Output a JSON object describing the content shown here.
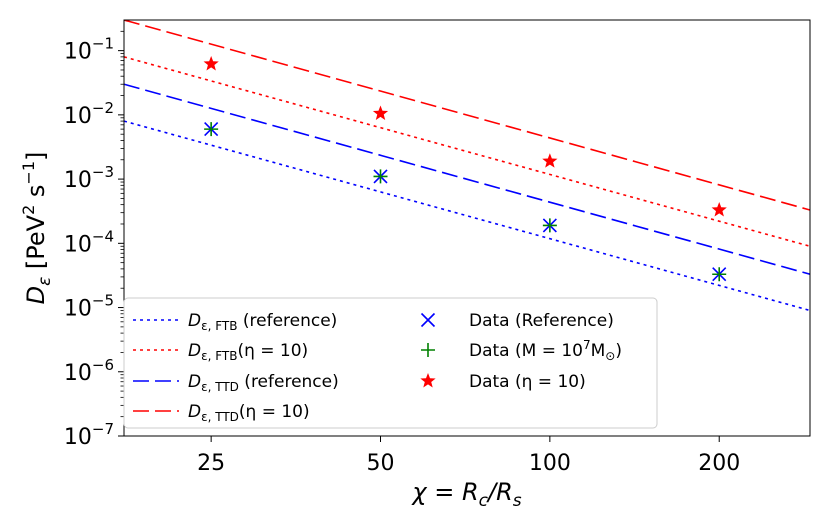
{
  "chart_data": {
    "type": "line",
    "xscale": "log",
    "yscale": "log",
    "xlim": [
      17.5,
      290
    ],
    "ylim": [
      1e-07,
      0.3
    ],
    "x_ticks": [
      25,
      50,
      100,
      200
    ],
    "x_tick_labels": [
      "25",
      "50",
      "100",
      "200"
    ],
    "y_ticks": [
      {
        "value": 1e-07,
        "base": "10",
        "exp": "−7"
      },
      {
        "value": 1e-06,
        "base": "10",
        "exp": "−6"
      },
      {
        "value": 1e-05,
        "base": "10",
        "exp": "−5"
      },
      {
        "value": 0.0001,
        "base": "10",
        "exp": "−4"
      },
      {
        "value": 0.001,
        "base": "10",
        "exp": "−3"
      },
      {
        "value": 0.01,
        "base": "10",
        "exp": "−2"
      },
      {
        "value": 0.1,
        "base": "10",
        "exp": "−1"
      }
    ],
    "xlabel": {
      "pre": "χ = R",
      "sub1": "c",
      "mid": "/R",
      "sub2": "s"
    },
    "ylabel": {
      "main": "D",
      "sub": "ε",
      "unit_pre": " [PeV",
      "sup1": "2",
      "unit_mid": " s",
      "sup2": "−1",
      "unit_post": "]"
    },
    "lines": [
      {
        "name": "D_ε,FTB (reference)",
        "color": "#0000ff",
        "dash": "3,4",
        "points": [
          [
            17.5,
            0.008
          ],
          [
            290,
            9e-06
          ]
        ]
      },
      {
        "name": "D_ε,FTB(η=10)",
        "color": "#ff0000",
        "dash": "3,4",
        "points": [
          [
            17.5,
            0.08
          ],
          [
            290,
            9e-05
          ]
        ]
      },
      {
        "name": "D_ε,TTD (reference)",
        "color": "#0000ff",
        "dash": "16,6",
        "points": [
          [
            17.5,
            0.03
          ],
          [
            290,
            3.3e-05
          ]
        ]
      },
      {
        "name": "D_ε,TTD(η=10)",
        "color": "#ff0000",
        "dash": "16,6",
        "points": [
          [
            17.5,
            0.3
          ],
          [
            290,
            0.00033
          ]
        ]
      }
    ],
    "scatter": [
      {
        "name": "Data (Reference)",
        "marker": "x",
        "color": "#0000ff",
        "x": [
          25,
          50,
          100,
          200
        ],
        "y": [
          0.006,
          0.0011,
          0.00019,
          3.3e-05
        ]
      },
      {
        "name": "Data (M=10^7 M_sun)",
        "marker": "plus",
        "color": "#008000",
        "x": [
          25,
          50,
          100,
          200
        ],
        "y": [
          0.006,
          0.0011,
          0.00019,
          3.3e-05
        ]
      },
      {
        "name": "Data (η=10)",
        "marker": "star",
        "color": "#ff0000",
        "x": [
          25,
          50,
          100,
          200
        ],
        "y": [
          0.062,
          0.0105,
          0.0019,
          0.00033
        ]
      }
    ],
    "legend": {
      "placement": "lower-left",
      "entries": [
        {
          "sym": "D",
          "sub": "ε, FTB",
          "text": " (reference)",
          "style": "line",
          "color": "#0000ff",
          "dash": "3,4"
        },
        {
          "sym": "D",
          "sub": "ε, FTB",
          "text": "(η = 10)",
          "style": "line",
          "color": "#ff0000",
          "dash": "3,4"
        },
        {
          "sym": "D",
          "sub": "ε, TTD",
          "text": " (reference)",
          "style": "line",
          "color": "#0000ff",
          "dash": "16,6"
        },
        {
          "sym": "D",
          "sub": "ε, TTD",
          "text": "(η = 10)",
          "style": "line",
          "color": "#ff0000",
          "dash": "16,6"
        },
        {
          "plain": "Data (Reference)",
          "style": "x",
          "color": "#0000ff"
        },
        {
          "plain_pre": "Data (M = 10",
          "sup": "7",
          "plain_mid": "M",
          "sub": "⊙",
          "plain_post": ")",
          "style": "plus",
          "color": "#008000"
        },
        {
          "plain": "Data (η = 10)",
          "style": "star",
          "color": "#ff0000"
        }
      ]
    }
  }
}
